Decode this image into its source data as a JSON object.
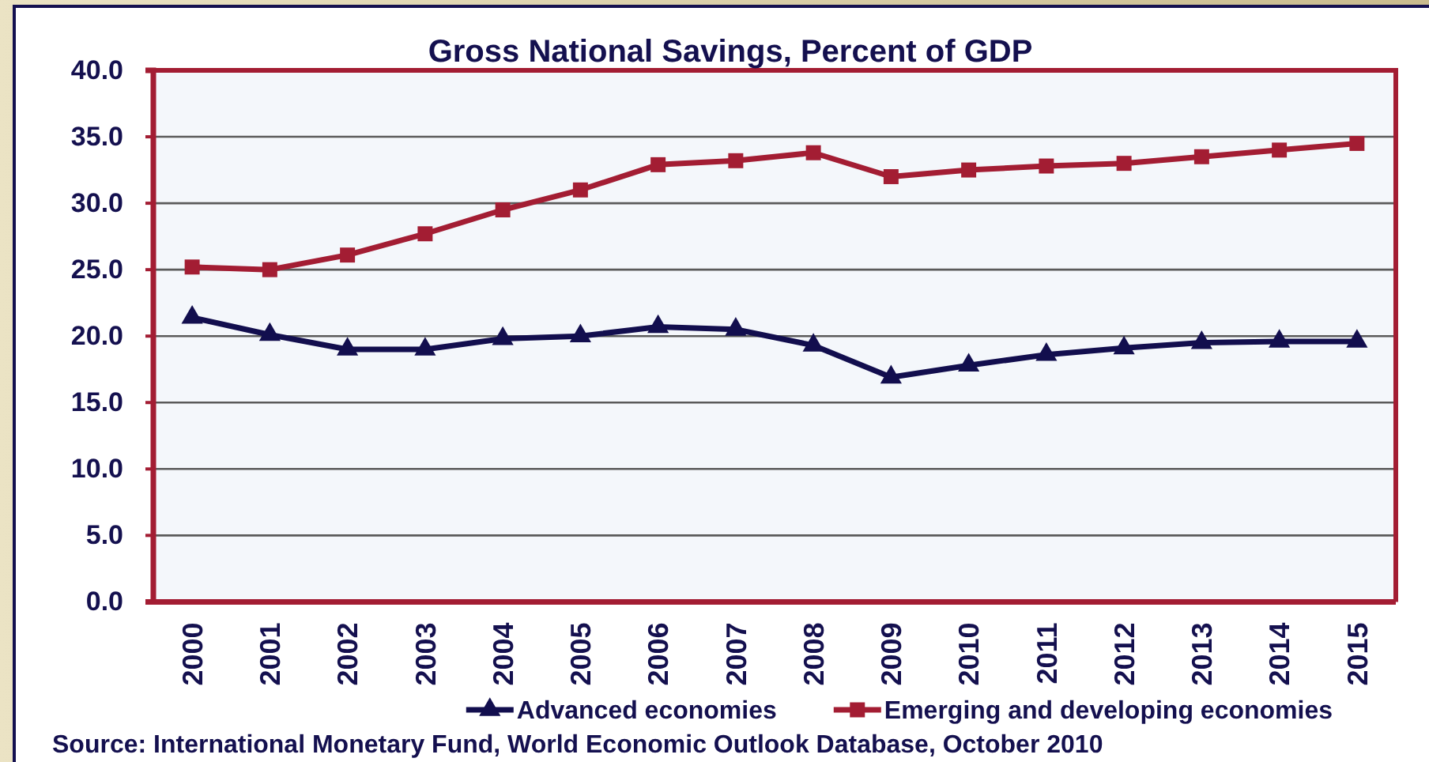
{
  "chart_data": {
    "type": "line",
    "title": "Gross National Savings, Percent of GDP",
    "categories": [
      "2000",
      "2001",
      "2002",
      "2003",
      "2004",
      "2005",
      "2006",
      "2007",
      "2008",
      "2009",
      "2010",
      "2011",
      "2012",
      "2013",
      "2014",
      "2015"
    ],
    "series": [
      {
        "name": "Advanced economies",
        "color": "#120e4e",
        "marker": "triangle",
        "values": [
          21.4,
          20.1,
          19.0,
          19.0,
          19.8,
          20.0,
          20.7,
          20.5,
          19.3,
          16.9,
          17.8,
          18.6,
          19.1,
          19.5,
          19.6,
          19.6
        ]
      },
      {
        "name": "Emerging and developing economies",
        "color": "#a31d33",
        "marker": "square",
        "values": [
          25.2,
          25.0,
          26.1,
          27.7,
          29.5,
          31.0,
          32.9,
          33.2,
          33.8,
          32.0,
          32.5,
          32.8,
          33.0,
          33.5,
          34.0,
          34.5
        ]
      }
    ],
    "ylim": [
      0,
      40
    ],
    "yticks": [
      {
        "value": 0,
        "label": "0.0"
      },
      {
        "value": 5,
        "label": "5.0"
      },
      {
        "value": 10,
        "label": "10.0"
      },
      {
        "value": 15,
        "label": "15.0"
      },
      {
        "value": 20,
        "label": "20.0"
      },
      {
        "value": 25,
        "label": "25.0"
      },
      {
        "value": 30,
        "label": "30.0"
      },
      {
        "value": 35,
        "label": "35.0"
      },
      {
        "value": 40,
        "label": "40.0"
      }
    ],
    "grid": "y",
    "legend": "bottom",
    "annotations": [
      "Source: International Monetary Fund, World Economic Outlook Database, October 2010"
    ]
  }
}
